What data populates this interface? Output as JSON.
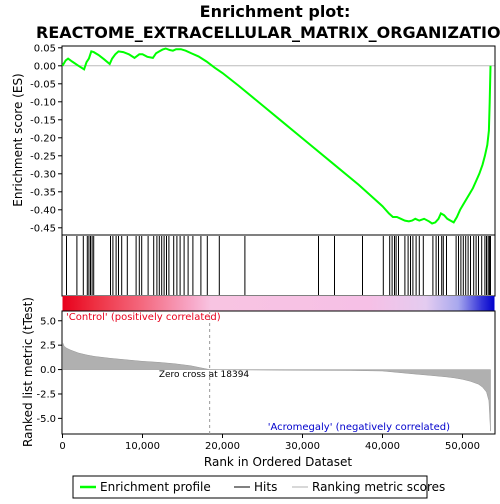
{
  "chart_data": {
    "type": "line",
    "title_line1": "Enrichment plot:",
    "title_line2": "REACTOME_EXTRACELLULAR_MATRIX_ORGANIZATION",
    "xlabel": "Rank in Ordered Dataset",
    "ylabel_top": "Enrichment score (ES)",
    "ylabel_bottom": "Ranked list metric (tTest)",
    "xlim": [
      0,
      54000
    ],
    "es_ylim": [
      -0.47,
      0.055
    ],
    "metric_ylim": [
      -6.6,
      6.0
    ],
    "x_ticks": [
      0,
      10000,
      20000,
      30000,
      40000,
      50000
    ],
    "x_tick_labels": [
      "0",
      "10,000",
      "20,000",
      "30,000",
      "40,000",
      "50,000"
    ],
    "es_ticks": [
      0.05,
      0.0,
      -0.05,
      -0.1,
      -0.15,
      -0.2,
      -0.25,
      -0.3,
      -0.35,
      -0.4,
      -0.45
    ],
    "es_tick_labels": [
      "0.05",
      "0.00",
      "-0.05",
      "-0.10",
      "-0.15",
      "-0.20",
      "-0.25",
      "-0.30",
      "-0.35",
      "-0.40",
      "-0.45"
    ],
    "metric_ticks": [
      5.0,
      2.5,
      0.0,
      -2.5,
      -5.0
    ],
    "metric_tick_labels": [
      "5.0",
      "2.5",
      "0.0",
      "-2.5",
      "-5.0"
    ],
    "zero_cross_label": "Zero cross at 18394",
    "zero_cross": 18394,
    "positive_label": "'Control' (positively correlated)",
    "negative_label": "'Acromegaly' (negatively correlated)",
    "legend": {
      "enrichment": "Enrichment profile",
      "hits": "Hits",
      "ranking": "Ranking metric scores"
    },
    "colors": {
      "enrichment": "#00ff00",
      "hits": "#000000",
      "metric_fill": "#b0b0b0",
      "positive": "#e8001c",
      "negative": "#0000cc",
      "neutral": "#f7c4e0",
      "positive_text": "#e8001c",
      "negative_text": "#0000cc"
    },
    "series": [
      {
        "name": "Enrichment profile",
        "x": [
          0,
          400,
          700,
          1200,
          2000,
          2700,
          3000,
          3300,
          3600,
          3900,
          4500,
          5200,
          5900,
          6200,
          6600,
          7000,
          7600,
          8300,
          9000,
          9600,
          10000,
          10600,
          11300,
          11700,
          12100,
          12500,
          12900,
          13400,
          13800,
          14200,
          14800,
          15400,
          16200,
          17000,
          18000,
          19000,
          20000,
          22000,
          25000,
          28000,
          31000,
          34000,
          37000,
          39000,
          40000,
          40800,
          41300,
          41800,
          42300,
          42800,
          43300,
          43700,
          44100,
          44600,
          45200,
          45800,
          46200,
          46600,
          47000,
          47300,
          47700,
          48100,
          48500,
          48900,
          49300,
          49700,
          50100,
          50500,
          50900,
          51300,
          51700,
          52100,
          52500,
          52800,
          53100,
          53300,
          53400,
          53500
        ],
        "y": [
          0.0,
          0.015,
          0.02,
          0.012,
          0.0,
          -0.01,
          0.01,
          0.02,
          0.04,
          0.038,
          0.03,
          0.018,
          0.005,
          0.02,
          0.032,
          0.04,
          0.038,
          0.032,
          0.022,
          0.032,
          0.032,
          0.025,
          0.022,
          0.035,
          0.04,
          0.045,
          0.048,
          0.044,
          0.042,
          0.046,
          0.046,
          0.042,
          0.034,
          0.026,
          0.012,
          -0.005,
          -0.02,
          -0.055,
          -0.11,
          -0.165,
          -0.22,
          -0.275,
          -0.33,
          -0.37,
          -0.39,
          -0.41,
          -0.42,
          -0.42,
          -0.425,
          -0.43,
          -0.432,
          -0.43,
          -0.425,
          -0.43,
          -0.425,
          -0.432,
          -0.438,
          -0.435,
          -0.425,
          -0.41,
          -0.415,
          -0.425,
          -0.43,
          -0.435,
          -0.42,
          -0.4,
          -0.385,
          -0.37,
          -0.355,
          -0.34,
          -0.32,
          -0.3,
          -0.275,
          -0.25,
          -0.22,
          -0.18,
          -0.1,
          0.0
        ]
      },
      {
        "name": "Ranking metric scores",
        "x": [
          0,
          200,
          500,
          1000,
          2000,
          3000,
          4000,
          6000,
          8000,
          10000,
          12000,
          14000,
          16000,
          18394,
          20000,
          24000,
          28000,
          32000,
          36000,
          40000,
          42000,
          44000,
          46000,
          48000,
          49000,
          50000,
          51000,
          52000,
          52500,
          53000,
          53300,
          53500
        ],
        "y": [
          2.8,
          2.4,
          2.2,
          2.0,
          1.7,
          1.5,
          1.35,
          1.15,
          1.0,
          0.85,
          0.75,
          0.6,
          0.4,
          0.0,
          -0.02,
          -0.04,
          -0.06,
          -0.08,
          -0.1,
          -0.15,
          -0.3,
          -0.45,
          -0.6,
          -0.75,
          -0.85,
          -1.0,
          -1.2,
          -1.5,
          -1.8,
          -2.3,
          -3.2,
          -6.3
        ]
      }
    ],
    "hits": [
      500,
      1800,
      2600,
      3100,
      3300,
      3500,
      3700,
      3900,
      6000,
      6300,
      6700,
      7000,
      7400,
      8100,
      9200,
      9600,
      9900,
      10700,
      11400,
      11800,
      12100,
      12400,
      12700,
      13000,
      13300,
      13900,
      14300,
      14700,
      15200,
      15700,
      16300,
      17300,
      18100,
      19600,
      22800,
      32000,
      34000,
      37500,
      40100,
      40900,
      41200,
      41500,
      41700,
      42000,
      42800,
      43200,
      43500,
      43800,
      44200,
      44600,
      45100,
      46300,
      46700,
      47000,
      47400,
      47600,
      48000,
      49200,
      49500,
      49800,
      50100,
      50400,
      50700,
      51000,
      51400,
      51700,
      52000,
      52400,
      52800,
      53000,
      53200,
      53350,
      53450,
      53500
    ],
    "rank_bar_stops": [
      {
        "x": 0,
        "color": "#e8001c"
      },
      {
        "x": 4000,
        "color": "#ee3042"
      },
      {
        "x": 10000,
        "color": "#f46a80"
      },
      {
        "x": 16000,
        "color": "#f7a8c8"
      },
      {
        "x": 18394,
        "color": "#f8c4e2"
      },
      {
        "x": 38000,
        "color": "#f6c0e6"
      },
      {
        "x": 45000,
        "color": "#e4ccf0"
      },
      {
        "x": 49000,
        "color": "#a8a8ee"
      },
      {
        "x": 52000,
        "color": "#3030d8"
      },
      {
        "x": 53500,
        "color": "#0000cc"
      }
    ]
  }
}
